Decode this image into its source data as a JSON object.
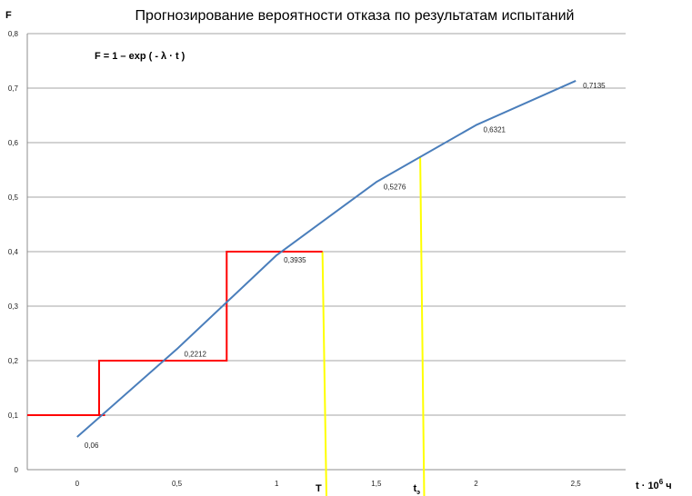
{
  "chart_data": {
    "type": "line",
    "title": "Прогнозирование вероятности отказа по результатам испытаний",
    "formula": "F = 1 – exp ( - λ · t )",
    "ylabel": "F",
    "xlabel": "t · 10",
    "xlabel_sup": "6",
    "xlabel_unit": " ч",
    "xlim": [
      -0.25,
      2.75
    ],
    "ylim": [
      0,
      0.8
    ],
    "grid": true,
    "x_ticks": [
      0,
      0.5,
      1,
      1.5,
      2,
      2.5
    ],
    "x_tick_labels": [
      "0",
      "0,5",
      "1",
      "1,5",
      "2",
      "2,5"
    ],
    "y_ticks": [
      0,
      0.1,
      0.2,
      0.3,
      0.4,
      0.5,
      0.6,
      0.7,
      0.8
    ],
    "y_tick_labels": [
      "0",
      "0,1",
      "0,2",
      "0,3",
      "0,4",
      "0,5",
      "0,6",
      "0,7",
      "0,8"
    ],
    "series": [
      {
        "color": "#4a7ebb",
        "x": [
          0,
          0.5,
          1,
          1.5,
          2,
          2.5
        ],
        "values": [
          0.06,
          0.2212,
          0.3935,
          0.5276,
          0.6321,
          0.7135
        ],
        "labels": [
          "0,06",
          "0,2212",
          "0,3935",
          "0,5276",
          "0,6321",
          "0,7135"
        ]
      }
    ],
    "step_line": {
      "color": "#ff0000",
      "points": [
        [
          -0.25,
          0.1
        ],
        [
          0.14,
          0.1
        ],
        [
          0.11,
          0.1
        ],
        [
          0.11,
          0.2
        ],
        [
          0.75,
          0.2
        ],
        [
          0.75,
          0.4
        ],
        [
          1.23,
          0.4
        ]
      ]
    },
    "vertical_markers": [
      {
        "label": "T",
        "sub": "",
        "color": "#ffff00",
        "x_top": 1.23,
        "x_bottom": 1.25,
        "y_top": 0.4
      },
      {
        "label": "t",
        "sub": "э",
        "color": "#ffff00",
        "x_top": 1.72,
        "x_bottom": 1.74,
        "y_top": 0.575
      }
    ]
  }
}
